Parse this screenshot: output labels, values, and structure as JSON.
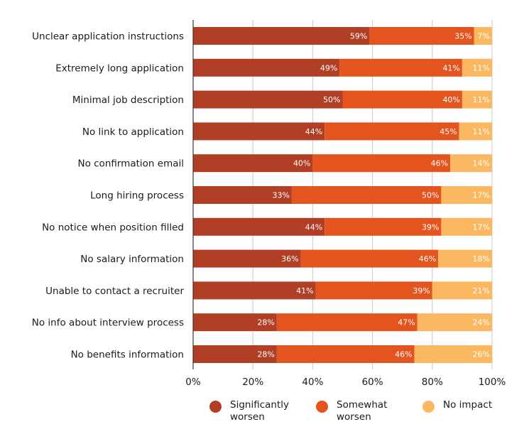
{
  "chart_data": {
    "type": "bar",
    "orientation": "horizontal",
    "stacked": true,
    "title": "",
    "xlabel": "",
    "ylabel": "",
    "xlim": [
      0,
      100
    ],
    "x_ticks": [
      "0%",
      "20%",
      "40%",
      "60%",
      "80%",
      "100%"
    ],
    "grid": "vertical",
    "legend_position": "bottom",
    "categories": [
      "Unclear application instructions",
      "Extremely long application",
      "Minimal job description",
      "No link to application",
      "No confirmation email",
      "Long hiring process",
      "No notice when position filled",
      "No salary information",
      "Unable to contact a recruiter",
      "No info about interview process",
      "No benefits information"
    ],
    "series": [
      {
        "name": "Significantly worsen",
        "legend_label": "Significantly\nworsen",
        "color": "#b03f26",
        "values": [
          59,
          49,
          50,
          44,
          40,
          33,
          44,
          36,
          41,
          28,
          28
        ]
      },
      {
        "name": "Somewhat worsen",
        "legend_label": "Somewhat\nworsen",
        "color": "#e3541e",
        "values": [
          35,
          41,
          40,
          45,
          46,
          50,
          39,
          46,
          39,
          47,
          46
        ]
      },
      {
        "name": "No impact",
        "legend_label": "No impact",
        "color": "#fbb860",
        "values": [
          7,
          11,
          11,
          11,
          14,
          17,
          17,
          18,
          21,
          24,
          26
        ]
      }
    ],
    "value_suffix": "%"
  }
}
